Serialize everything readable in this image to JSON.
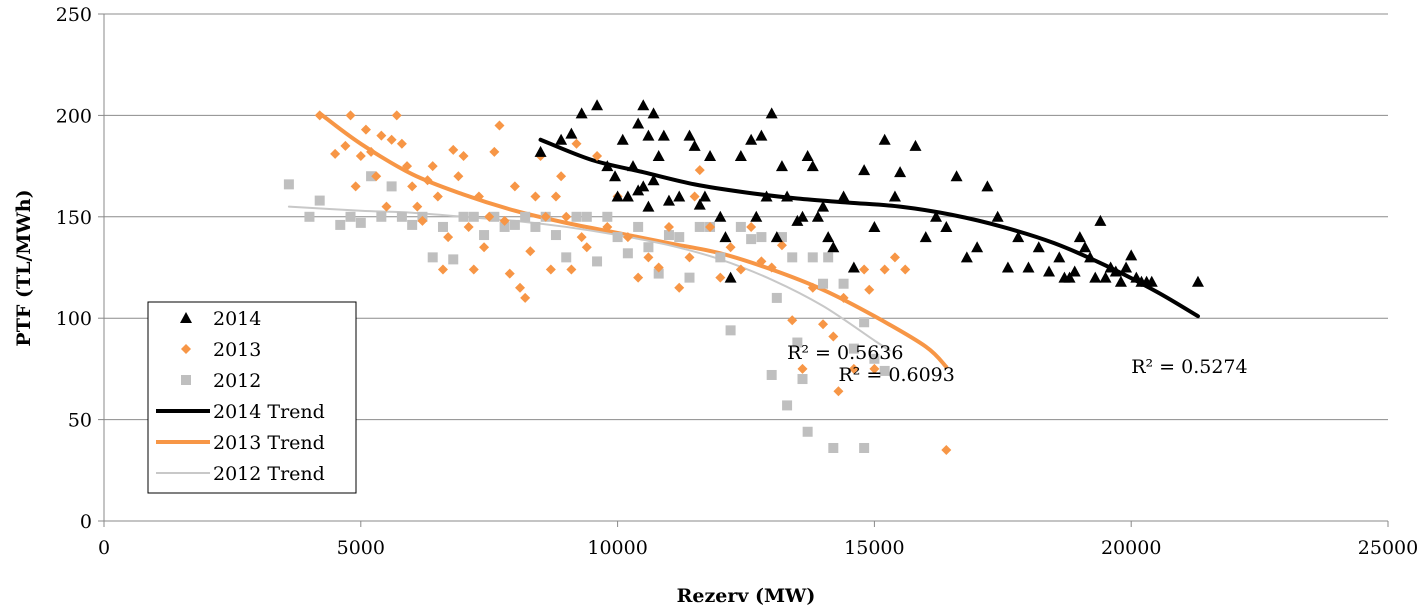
{
  "chart_data": {
    "type": "scatter",
    "xlabel": "Rezerv (MW)",
    "ylabel": "PTF (TL/MWh)",
    "xlim": [
      0,
      25000
    ],
    "ylim": [
      0,
      250
    ],
    "xticks": [
      "0",
      "5000",
      "10000",
      "15000",
      "20000",
      "25000"
    ],
    "yticks": [
      "0",
      "50",
      "100",
      "150",
      "200",
      "250"
    ],
    "grid": "horizontal",
    "legend_position": "bottom-left",
    "colors": {
      "2014": "#000000",
      "2013": "#f79646",
      "2012": "#bfbfbf",
      "2012_trend": "#c8c8c8"
    },
    "series": [
      {
        "name": "2014",
        "marker": "triangle",
        "points": [
          [
            8500,
            182
          ],
          [
            8900,
            188
          ],
          [
            9100,
            191
          ],
          [
            9300,
            201
          ],
          [
            9600,
            205
          ],
          [
            9800,
            175
          ],
          [
            9950,
            170
          ],
          [
            10000,
            160
          ],
          [
            10100,
            188
          ],
          [
            10200,
            160
          ],
          [
            10300,
            175
          ],
          [
            10400,
            163
          ],
          [
            10400,
            196
          ],
          [
            10500,
            205
          ],
          [
            10600,
            190
          ],
          [
            10700,
            201
          ],
          [
            10800,
            180
          ],
          [
            10900,
            190
          ],
          [
            11000,
            158
          ],
          [
            10500,
            165
          ],
          [
            10600,
            155
          ],
          [
            10700,
            168
          ],
          [
            11200,
            160
          ],
          [
            11400,
            190
          ],
          [
            11500,
            185
          ],
          [
            11600,
            156
          ],
          [
            11700,
            160
          ],
          [
            11800,
            180
          ],
          [
            12000,
            150
          ],
          [
            12100,
            140
          ],
          [
            12200,
            120
          ],
          [
            12400,
            180
          ],
          [
            12600,
            188
          ],
          [
            12700,
            150
          ],
          [
            12800,
            190
          ],
          [
            12900,
            160
          ],
          [
            13000,
            201
          ],
          [
            13100,
            140
          ],
          [
            13200,
            175
          ],
          [
            13300,
            160
          ],
          [
            13500,
            148
          ],
          [
            13600,
            150
          ],
          [
            13700,
            180
          ],
          [
            13800,
            175
          ],
          [
            13900,
            150
          ],
          [
            14000,
            155
          ],
          [
            14100,
            140
          ],
          [
            14200,
            135
          ],
          [
            14400,
            160
          ],
          [
            14600,
            125
          ],
          [
            14800,
            173
          ],
          [
            15000,
            145
          ],
          [
            15200,
            188
          ],
          [
            15400,
            160
          ],
          [
            15500,
            172
          ],
          [
            15800,
            185
          ],
          [
            16000,
            140
          ],
          [
            16200,
            150
          ],
          [
            16400,
            145
          ],
          [
            16600,
            170
          ],
          [
            16800,
            130
          ],
          [
            17000,
            135
          ],
          [
            17200,
            165
          ],
          [
            17400,
            150
          ],
          [
            17600,
            125
          ],
          [
            17800,
            140
          ],
          [
            18000,
            125
          ],
          [
            18200,
            135
          ],
          [
            18400,
            123
          ],
          [
            18600,
            130
          ],
          [
            18700,
            120
          ],
          [
            18800,
            120
          ],
          [
            18900,
            123
          ],
          [
            19000,
            140
          ],
          [
            19100,
            135
          ],
          [
            19200,
            130
          ],
          [
            19300,
            120
          ],
          [
            19400,
            148
          ],
          [
            19500,
            120
          ],
          [
            19600,
            125
          ],
          [
            19700,
            123
          ],
          [
            19800,
            118
          ],
          [
            19900,
            125
          ],
          [
            20000,
            131
          ],
          [
            20100,
            120
          ],
          [
            20200,
            118
          ],
          [
            20300,
            118
          ],
          [
            20400,
            118
          ],
          [
            21300,
            118
          ]
        ]
      },
      {
        "name": "2013",
        "marker": "diamond",
        "points": [
          [
            4200,
            200
          ],
          [
            4500,
            181
          ],
          [
            4700,
            185
          ],
          [
            4800,
            200
          ],
          [
            4900,
            165
          ],
          [
            5000,
            180
          ],
          [
            5100,
            193
          ],
          [
            5200,
            182
          ],
          [
            5300,
            170
          ],
          [
            5400,
            190
          ],
          [
            5500,
            155
          ],
          [
            5600,
            188
          ],
          [
            5700,
            200
          ],
          [
            5800,
            186
          ],
          [
            5900,
            175
          ],
          [
            6000,
            165
          ],
          [
            6100,
            155
          ],
          [
            6200,
            148
          ],
          [
            6300,
            168
          ],
          [
            6400,
            175
          ],
          [
            6500,
            160
          ],
          [
            6600,
            124
          ],
          [
            6700,
            140
          ],
          [
            6800,
            183
          ],
          [
            6900,
            170
          ],
          [
            7000,
            180
          ],
          [
            7100,
            145
          ],
          [
            7200,
            124
          ],
          [
            7300,
            160
          ],
          [
            7400,
            135
          ],
          [
            7500,
            150
          ],
          [
            7600,
            182
          ],
          [
            7700,
            195
          ],
          [
            7800,
            148
          ],
          [
            7900,
            122
          ],
          [
            8000,
            165
          ],
          [
            8100,
            115
          ],
          [
            8200,
            110
          ],
          [
            8300,
            133
          ],
          [
            8400,
            160
          ],
          [
            8500,
            180
          ],
          [
            8600,
            150
          ],
          [
            8700,
            124
          ],
          [
            8800,
            160
          ],
          [
            8900,
            170
          ],
          [
            9000,
            150
          ],
          [
            9100,
            124
          ],
          [
            9200,
            186
          ],
          [
            9300,
            140
          ],
          [
            9400,
            135
          ],
          [
            9600,
            180
          ],
          [
            9800,
            145
          ],
          [
            10000,
            160
          ],
          [
            10200,
            140
          ],
          [
            10400,
            120
          ],
          [
            10600,
            130
          ],
          [
            10800,
            125
          ],
          [
            11000,
            145
          ],
          [
            11200,
            115
          ],
          [
            11400,
            130
          ],
          [
            11500,
            160
          ],
          [
            11600,
            173
          ],
          [
            11800,
            145
          ],
          [
            12000,
            120
          ],
          [
            12200,
            135
          ],
          [
            12400,
            124
          ],
          [
            12600,
            145
          ],
          [
            12800,
            128
          ],
          [
            13000,
            125
          ],
          [
            13200,
            136
          ],
          [
            13400,
            99
          ],
          [
            13600,
            75
          ],
          [
            13800,
            115
          ],
          [
            14000,
            97
          ],
          [
            14200,
            91
          ],
          [
            14300,
            64
          ],
          [
            14400,
            110
          ],
          [
            14600,
            75
          ],
          [
            14800,
            124
          ],
          [
            14900,
            114
          ],
          [
            15000,
            75
          ],
          [
            15200,
            124
          ],
          [
            15400,
            130
          ],
          [
            15600,
            124
          ],
          [
            16400,
            35
          ]
        ]
      },
      {
        "name": "2012",
        "marker": "square",
        "points": [
          [
            3600,
            166
          ],
          [
            4000,
            150
          ],
          [
            4200,
            158
          ],
          [
            4600,
            146
          ],
          [
            4800,
            150
          ],
          [
            5000,
            147
          ],
          [
            5200,
            170
          ],
          [
            5400,
            150
          ],
          [
            5600,
            165
          ],
          [
            5800,
            150
          ],
          [
            6000,
            146
          ],
          [
            6200,
            150
          ],
          [
            6400,
            130
          ],
          [
            6600,
            145
          ],
          [
            6800,
            129
          ],
          [
            7000,
            150
          ],
          [
            7200,
            150
          ],
          [
            7400,
            141
          ],
          [
            7600,
            150
          ],
          [
            7800,
            145
          ],
          [
            8000,
            146
          ],
          [
            8200,
            150
          ],
          [
            8400,
            145
          ],
          [
            8600,
            150
          ],
          [
            8800,
            141
          ],
          [
            9000,
            130
          ],
          [
            9200,
            150
          ],
          [
            9400,
            150
          ],
          [
            9600,
            128
          ],
          [
            9800,
            150
          ],
          [
            10000,
            140
          ],
          [
            10200,
            132
          ],
          [
            10400,
            145
          ],
          [
            10600,
            135
          ],
          [
            10800,
            122
          ],
          [
            11000,
            141
          ],
          [
            11200,
            140
          ],
          [
            11400,
            120
          ],
          [
            11600,
            145
          ],
          [
            11800,
            145
          ],
          [
            12000,
            130
          ],
          [
            12200,
            94
          ],
          [
            12400,
            145
          ],
          [
            12600,
            139
          ],
          [
            12800,
            140
          ],
          [
            13000,
            72
          ],
          [
            13100,
            110
          ],
          [
            13200,
            140
          ],
          [
            13300,
            57
          ],
          [
            13400,
            130
          ],
          [
            13500,
            88
          ],
          [
            13600,
            70
          ],
          [
            13700,
            44
          ],
          [
            13800,
            130
          ],
          [
            14000,
            117
          ],
          [
            14100,
            130
          ],
          [
            14200,
            36
          ],
          [
            14400,
            117
          ],
          [
            14600,
            85
          ],
          [
            14800,
            98
          ],
          [
            15000,
            80
          ],
          [
            15200,
            74
          ],
          [
            14800,
            36
          ]
        ]
      }
    ],
    "trends": [
      {
        "name": "2014 Trend",
        "width": 4,
        "points": [
          [
            8500,
            188
          ],
          [
            9500,
            178
          ],
          [
            10500,
            172
          ],
          [
            11500,
            166
          ],
          [
            12500,
            162
          ],
          [
            13500,
            159
          ],
          [
            14500,
            157
          ],
          [
            15500,
            155
          ],
          [
            16500,
            151
          ],
          [
            17500,
            145
          ],
          [
            18500,
            137
          ],
          [
            19500,
            126
          ],
          [
            20500,
            113
          ],
          [
            21300,
            101
          ]
        ]
      },
      {
        "name": "2013 Trend",
        "width": 4,
        "points": [
          [
            4200,
            201
          ],
          [
            5000,
            186
          ],
          [
            6000,
            171
          ],
          [
            7000,
            161
          ],
          [
            8000,
            153
          ],
          [
            9000,
            147
          ],
          [
            10000,
            142
          ],
          [
            11000,
            137
          ],
          [
            12000,
            132
          ],
          [
            13000,
            124
          ],
          [
            14000,
            114
          ],
          [
            15000,
            101
          ],
          [
            16000,
            86
          ],
          [
            16400,
            76
          ]
        ]
      },
      {
        "name": "2012 Trend",
        "width": 2,
        "points": [
          [
            3600,
            155
          ],
          [
            5000,
            153
          ],
          [
            6000,
            152
          ],
          [
            7000,
            150
          ],
          [
            8000,
            148
          ],
          [
            9000,
            145
          ],
          [
            10000,
            141
          ],
          [
            11000,
            136
          ],
          [
            12000,
            129
          ],
          [
            13000,
            119
          ],
          [
            14000,
            106
          ],
          [
            15000,
            89
          ],
          [
            15300,
            84
          ]
        ]
      }
    ],
    "legend": [
      "2014",
      "2013",
      "2012",
      "2014 Trend",
      "2013 Trend",
      "2012 Trend"
    ],
    "annotations": [
      {
        "text": "R² = 0.5636",
        "x": 13300,
        "y": 80
      },
      {
        "text": "R² = 0.6093",
        "x": 14300,
        "y": 69
      },
      {
        "text": "R² = 0.5274",
        "x": 20000,
        "y": 73
      }
    ]
  }
}
